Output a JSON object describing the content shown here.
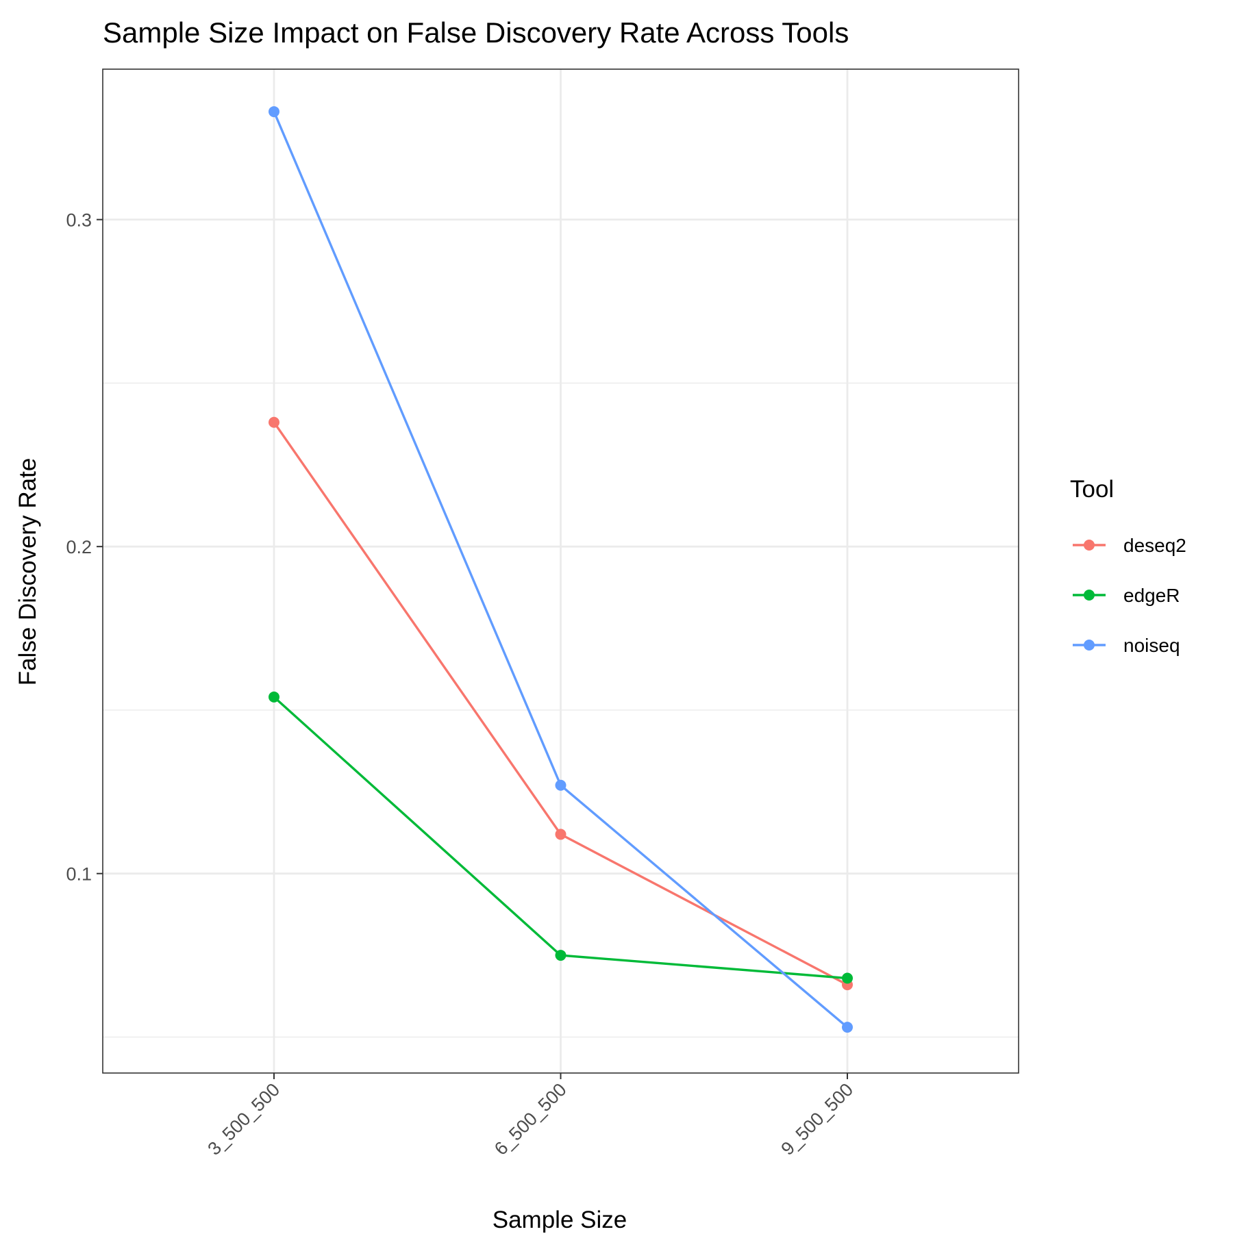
{
  "chart_data": {
    "type": "line",
    "title": "Sample Size Impact on False Discovery Rate Across Tools",
    "xlabel": "Sample Size",
    "ylabel": "False Discovery Rate",
    "categories": [
      "3_500_500",
      "6_500_500",
      "9_500_500"
    ],
    "y_ticks": [
      0.1,
      0.2,
      0.3
    ],
    "y_tick_labels": [
      "0.1",
      "0.2",
      "0.3"
    ],
    "y_minor_ticks": [
      0.05,
      0.15,
      0.25
    ],
    "ylim": [
      0.039,
      0.346
    ],
    "grid": true,
    "legend": {
      "title": "Tool",
      "placement": "right"
    },
    "series": [
      {
        "name": "deseq2",
        "color": "#F8766D",
        "values": [
          0.238,
          0.112,
          0.066
        ]
      },
      {
        "name": "edgeR",
        "color": "#00BA38",
        "values": [
          0.154,
          0.075,
          0.068
        ]
      },
      {
        "name": "noiseq",
        "color": "#619CFF",
        "values": [
          0.333,
          0.127,
          0.053
        ]
      }
    ]
  }
}
